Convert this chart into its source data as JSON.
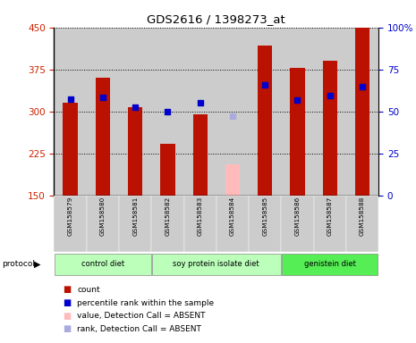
{
  "title": "GDS2616 / 1398273_at",
  "samples": [
    "GSM158579",
    "GSM158580",
    "GSM158581",
    "GSM158582",
    "GSM158583",
    "GSM158584",
    "GSM158585",
    "GSM158586",
    "GSM158587",
    "GSM158588"
  ],
  "count_values": [
    315,
    360,
    308,
    242,
    295,
    null,
    418,
    378,
    390,
    450
  ],
  "count_absent": [
    null,
    null,
    null,
    null,
    null,
    205,
    null,
    null,
    null,
    null
  ],
  "percentile_values": [
    322,
    325,
    308,
    300,
    315,
    null,
    348,
    320,
    328,
    345
  ],
  "percentile_absent": [
    null,
    null,
    null,
    null,
    null,
    291,
    null,
    null,
    null,
    null
  ],
  "ylim_left": [
    150,
    450
  ],
  "ylim_right": [
    0,
    100
  ],
  "yticks_left": [
    150,
    225,
    300,
    375,
    450
  ],
  "yticks_right": [
    0,
    25,
    50,
    75,
    100
  ],
  "bar_color_present": "#bb1100",
  "bar_color_absent": "#ffbbbb",
  "marker_color_present": "#0000cc",
  "marker_color_absent": "#aaaadd",
  "bar_width": 0.45,
  "col_bg_color": "#cccccc",
  "plot_bg_color": "#ffffff",
  "left_label_color": "#cc2200",
  "right_label_color": "#0000cc",
  "group_colors": [
    "#bbffbb",
    "#bbffbb",
    "#55ee55"
  ],
  "group_labels": [
    "control diet",
    "soy protein isolate diet",
    "genistein diet"
  ],
  "group_starts": [
    0,
    3,
    7
  ],
  "group_ends": [
    2,
    6,
    9
  ]
}
